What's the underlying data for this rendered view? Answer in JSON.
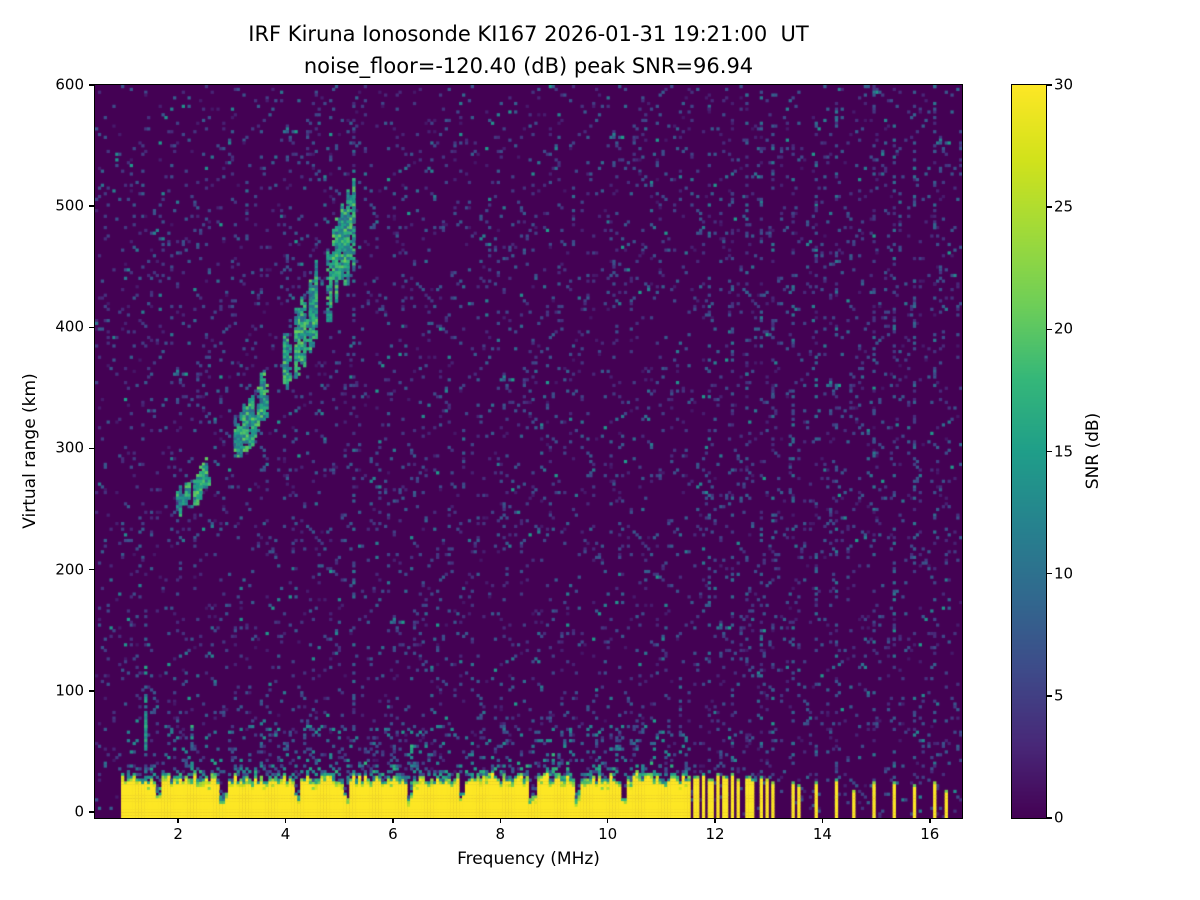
{
  "chart_data": {
    "type": "heatmap",
    "title": "IRF Kiruna Ionosonde KI167 2026-01-31 19:21:00  UT",
    "subtitle": "noise_floor=-120.40 (dB) peak SNR=96.94",
    "xlabel": "Frequency (MHz)",
    "ylabel": "Virtual range (km)",
    "xlim": [
      0.45,
      16.6
    ],
    "ylim": [
      -5,
      600
    ],
    "xticks": [
      2,
      4,
      6,
      8,
      10,
      12,
      14,
      16
    ],
    "yticks": [
      0,
      100,
      200,
      300,
      400,
      500,
      600
    ],
    "grid": false,
    "colorbar": {
      "label": "SNR (dB)",
      "ticks": [
        0,
        5,
        10,
        15,
        20,
        25,
        30
      ],
      "min": 0,
      "max": 30,
      "colormap": "viridis"
    },
    "background_snr_db": 0,
    "noise": {
      "speckle_density": 0.055,
      "speckle_snr": [
        1.5,
        8
      ],
      "bright_density": 0.007,
      "bright_snr": [
        8,
        15
      ]
    },
    "ground_clutter": {
      "f_start": 0.93,
      "f_end": 11.56,
      "top_km_mean": 28,
      "top_km_jitter": 9,
      "snr": 30,
      "notches_mhz": [
        1.65,
        2.85,
        4.2,
        5.15,
        6.3,
        7.3,
        8.6,
        9.45,
        10.3
      ]
    },
    "clutter_spikes": [
      [
        1.38,
        120
      ],
      [
        2.28,
        70
      ],
      [
        6.32,
        55
      ],
      [
        9.0,
        50
      ]
    ],
    "interference_stripes": [
      {
        "f": 11.63,
        "h": 28,
        "w": 2
      },
      {
        "f": 11.76,
        "h": 30,
        "w": 1
      },
      {
        "f": 11.9,
        "h": 27,
        "w": 2
      },
      {
        "f": 12.03,
        "h": 30,
        "w": 1
      },
      {
        "f": 12.17,
        "h": 28,
        "w": 2
      },
      {
        "f": 12.31,
        "h": 30,
        "w": 1
      },
      {
        "f": 12.45,
        "h": 27,
        "w": 1
      },
      {
        "f": 12.58,
        "h": 29,
        "w": 2
      },
      {
        "f": 12.72,
        "h": 26,
        "w": 1
      },
      {
        "f": 12.86,
        "h": 29,
        "w": 1
      },
      {
        "f": 12.99,
        "h": 27,
        "w": 1
      },
      {
        "f": 13.1,
        "h": 24,
        "w": 1
      },
      {
        "f": 13.45,
        "h": 25,
        "w": 1
      },
      {
        "f": 13.55,
        "h": 22,
        "w": 1
      },
      {
        "f": 13.9,
        "h": 24,
        "w": 1
      },
      {
        "f": 14.28,
        "h": 26,
        "w": 1
      },
      {
        "f": 14.6,
        "h": 18,
        "w": 1
      },
      {
        "f": 14.97,
        "h": 24,
        "w": 1
      },
      {
        "f": 15.35,
        "h": 25,
        "w": 1
      },
      {
        "f": 15.73,
        "h": 22,
        "w": 1
      },
      {
        "f": 16.07,
        "h": 24,
        "w": 1
      },
      {
        "f": 16.3,
        "h": 18,
        "w": 1
      }
    ],
    "noise_columns_mhz": [
      5.28,
      11.9,
      12.31,
      12.58,
      12.86,
      13.1,
      13.45,
      13.9,
      14.28,
      14.97,
      15.35,
      15.73,
      16.07
    ],
    "echo_trace": {
      "description": "F-region ionospheric echo rising from ~255 km at 1.9 MHz to ~455 km at 5.3 MHz",
      "base_curve_km": {
        "a": 250,
        "b": 23.2,
        "c": 10.9,
        "f0": 1.9
      },
      "f_range": [
        1.9,
        5.3
      ],
      "clusters_mhz": [
        [
          2.0,
          2.6
        ],
        [
          3.05,
          3.65
        ],
        [
          3.95,
          4.6
        ],
        [
          4.75,
          5.3
        ]
      ],
      "snr": [
        9,
        21
      ],
      "spread_km": [
        12,
        78
      ],
      "sample_points_mhz_km": [
        [
          1.9,
          255
        ],
        [
          2.3,
          268
        ],
        [
          2.8,
          288
        ],
        [
          3.2,
          308
        ],
        [
          3.6,
          332
        ],
        [
          4.0,
          348
        ],
        [
          4.4,
          365
        ],
        [
          4.7,
          388
        ],
        [
          5.0,
          420
        ],
        [
          5.25,
          455
        ]
      ]
    }
  }
}
